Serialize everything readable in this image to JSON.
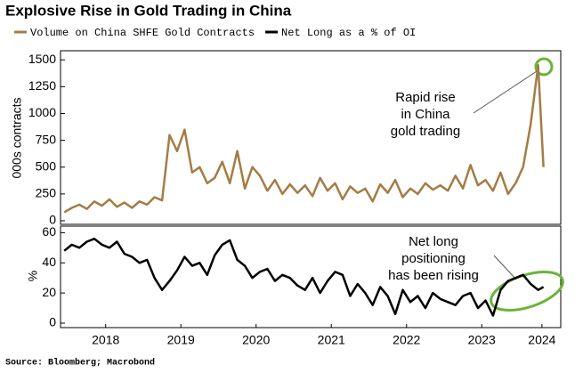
{
  "title": "Explosive Rise in Gold Trading in China",
  "source": "Source: Bloomberg; Macrobond",
  "chart_data": [
    {
      "type": "line",
      "y_label": "000s contracts",
      "annotation": [
        "Rapid rise",
        "in China",
        "gold trading"
      ],
      "x": [
        2017.95,
        2018.05,
        2018.15,
        2018.25,
        2018.35,
        2018.45,
        2018.55,
        2018.65,
        2018.75,
        2018.85,
        2018.95,
        2019.05,
        2019.15,
        2019.25,
        2019.35,
        2019.45,
        2019.55,
        2019.65,
        2019.75,
        2019.85,
        2019.95,
        2020.05,
        2020.15,
        2020.25,
        2020.35,
        2020.45,
        2020.55,
        2020.65,
        2020.75,
        2020.85,
        2020.95,
        2021.05,
        2021.15,
        2021.25,
        2021.35,
        2021.45,
        2021.55,
        2021.65,
        2021.75,
        2021.85,
        2021.95,
        2022.05,
        2022.15,
        2022.25,
        2022.35,
        2022.45,
        2022.55,
        2022.65,
        2022.75,
        2022.85,
        2022.95,
        2023.05,
        2023.15,
        2023.25,
        2023.35,
        2023.45,
        2023.55,
        2023.65,
        2023.75,
        2023.85,
        2023.95,
        2024.05,
        2024.15,
        2024.25,
        2024.32
      ],
      "series": [
        {
          "name": "Volume on China SHFE Gold Contracts",
          "color": "#a47c45",
          "values": [
            80,
            120,
            150,
            110,
            180,
            140,
            200,
            130,
            170,
            120,
            180,
            150,
            220,
            190,
            800,
            650,
            850,
            450,
            500,
            350,
            400,
            550,
            350,
            650,
            300,
            500,
            420,
            280,
            380,
            250,
            340,
            260,
            330,
            230,
            400,
            280,
            350,
            200,
            320,
            260,
            300,
            180,
            340,
            260,
            380,
            220,
            300,
            250,
            350,
            290,
            330,
            280,
            420,
            300,
            520,
            330,
            380,
            280,
            450,
            250,
            350,
            500,
            900,
            1450,
            500
          ]
        }
      ],
      "xlim": [
        2017.9,
        2024.55
      ],
      "ylim": [
        0,
        1560
      ],
      "yticks": [
        0,
        250,
        500,
        750,
        1000,
        1250,
        1500
      ]
    },
    {
      "type": "line",
      "y_label": "%",
      "annotation": [
        "Net long",
        "positioning",
        "has been rising"
      ],
      "x": [
        2017.95,
        2018.05,
        2018.15,
        2018.25,
        2018.35,
        2018.45,
        2018.55,
        2018.65,
        2018.75,
        2018.85,
        2018.95,
        2019.05,
        2019.15,
        2019.25,
        2019.35,
        2019.45,
        2019.55,
        2019.65,
        2019.75,
        2019.85,
        2019.95,
        2020.05,
        2020.15,
        2020.25,
        2020.35,
        2020.45,
        2020.55,
        2020.65,
        2020.75,
        2020.85,
        2020.95,
        2021.05,
        2021.15,
        2021.25,
        2021.35,
        2021.45,
        2021.55,
        2021.65,
        2021.75,
        2021.85,
        2021.95,
        2022.05,
        2022.15,
        2022.25,
        2022.35,
        2022.45,
        2022.55,
        2022.65,
        2022.75,
        2022.85,
        2022.95,
        2023.05,
        2023.15,
        2023.25,
        2023.35,
        2023.45,
        2023.55,
        2023.65,
        2023.75,
        2023.85,
        2023.95,
        2024.05,
        2024.15,
        2024.25,
        2024.32
      ],
      "series": [
        {
          "name": "Net Long as a % of OI",
          "color": "#000000",
          "values": [
            48,
            52,
            50,
            54,
            56,
            52,
            50,
            54,
            46,
            44,
            40,
            42,
            30,
            22,
            28,
            35,
            44,
            38,
            40,
            32,
            45,
            52,
            55,
            42,
            38,
            30,
            34,
            36,
            28,
            32,
            30,
            25,
            22,
            30,
            20,
            28,
            34,
            32,
            18,
            26,
            20,
            12,
            24,
            18,
            6,
            22,
            14,
            18,
            10,
            20,
            16,
            14,
            12,
            18,
            20,
            10,
            15,
            5,
            22,
            28,
            30,
            32,
            26,
            22,
            24
          ]
        }
      ],
      "xlim": [
        2017.9,
        2024.55
      ],
      "ylim": [
        0,
        62
      ],
      "yticks": [
        0,
        20,
        40,
        60
      ],
      "xticks": [
        {
          "value": 2018.5,
          "label": "2018"
        },
        {
          "value": 2019.5,
          "label": "2019"
        },
        {
          "value": 2020.5,
          "label": "2020"
        },
        {
          "value": 2021.5,
          "label": "2021"
        },
        {
          "value": 2022.5,
          "label": "2022"
        },
        {
          "value": 2023.5,
          "label": "2023"
        },
        {
          "value": 2024.3,
          "label": "2024"
        }
      ]
    }
  ]
}
